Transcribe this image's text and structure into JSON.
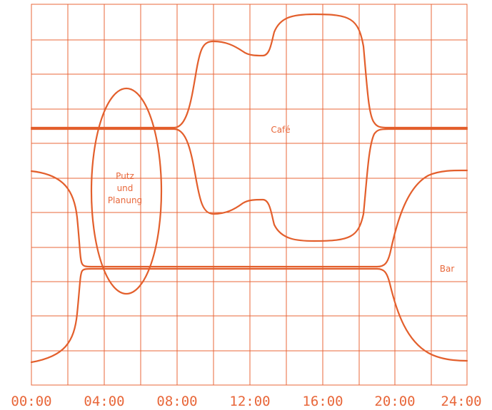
{
  "zones": {
    "cafe": "Café",
    "putz_line1": "Putz",
    "putz_line2": "und",
    "putz_line3": "Planung",
    "bar": "Bar"
  },
  "time_axis": {
    "ticks": [
      "00:00",
      "04:00",
      "08:00",
      "12:00",
      "16:00",
      "20:00",
      "24:00"
    ]
  },
  "colors": {
    "accent": "#e35f2c",
    "grid": "#e8673a",
    "background": "#ffffff"
  }
}
